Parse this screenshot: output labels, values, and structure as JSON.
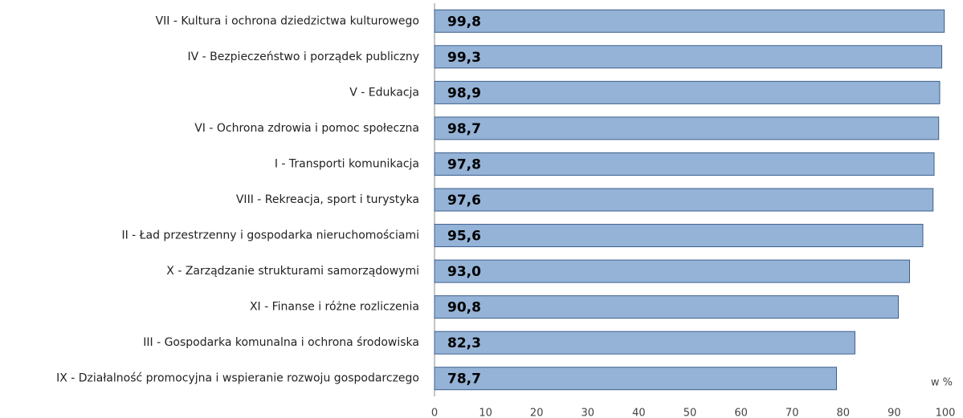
{
  "chart_data": {
    "type": "bar",
    "orientation": "horizontal",
    "categories": [
      "VII - Kultura i ochrona dziedzictwa kulturowego",
      "IV - Bezpieczeństwo i porządek publiczny",
      "V - Edukacja",
      "VI - Ochrona zdrowia i pomoc społeczna",
      "I - Transporti komunikacja",
      "VIII - Rekreacja, sport i turystyka",
      "II - Ład przestrzenny i gospodarka nieruchomościami",
      "X - Zarządzanie strukturami samorządowymi",
      "XI - Finanse i różne rozliczenia",
      "III - Gospodarka komunalna i ochrona środowiska",
      "IX - Działalność promocyjna i wspieranie rozwoju gospodarczego"
    ],
    "values": [
      99.8,
      99.3,
      98.9,
      98.7,
      97.8,
      97.6,
      95.6,
      93.0,
      90.8,
      82.3,
      78.7
    ],
    "value_labels": [
      "99,8",
      "99,3",
      "98,9",
      "98,7",
      "97,8",
      "97,6",
      "95,6",
      "93,0",
      "90,8",
      "82,3",
      "78,7"
    ],
    "color": "#95b3d7",
    "xlim": [
      0,
      100
    ],
    "xticks": [
      0,
      10,
      20,
      30,
      40,
      50,
      60,
      70,
      80,
      90,
      100
    ],
    "annotation": "w %"
  }
}
